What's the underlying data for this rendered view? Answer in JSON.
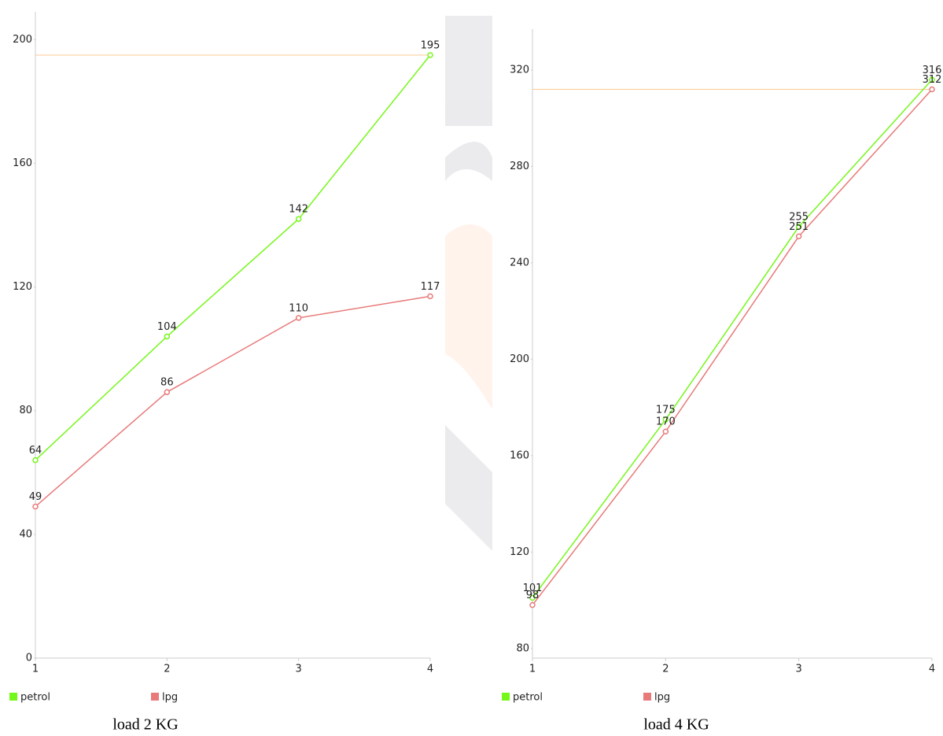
{
  "chart_data": [
    {
      "type": "line",
      "caption": "load 2 KG",
      "x": [
        1,
        2,
        3,
        4
      ],
      "xlim": [
        1,
        4
      ],
      "xticks": [
        1,
        2,
        3,
        4
      ],
      "ylim": [
        0,
        209
      ],
      "yticks": [
        0,
        40,
        80,
        120,
        160,
        200
      ],
      "reference_line": {
        "value": 195,
        "color": "#fcc98f"
      },
      "series": [
        {
          "name": "petrol",
          "color": "#76f71a",
          "values": [
            64,
            104,
            142,
            195
          ]
        },
        {
          "name": "lpg",
          "color": "#e87a7a",
          "values": [
            49,
            86,
            110,
            117
          ]
        }
      ]
    },
    {
      "type": "line",
      "caption": "load 4 KG",
      "x": [
        1,
        2,
        3,
        4
      ],
      "xlim": [
        1,
        4
      ],
      "xticks": [
        1,
        2,
        3,
        4
      ],
      "ylim": [
        76,
        337
      ],
      "yticks": [
        80,
        120,
        160,
        200,
        240,
        280,
        320
      ],
      "reference_line": {
        "value": 312,
        "color": "#fcc98f"
      },
      "series": [
        {
          "name": "petrol",
          "color": "#76f71a",
          "values": [
            101,
            175,
            255,
            316
          ]
        },
        {
          "name": "lpg",
          "color": "#e87a7a",
          "values": [
            98,
            170,
            251,
            312
          ]
        }
      ]
    }
  ]
}
